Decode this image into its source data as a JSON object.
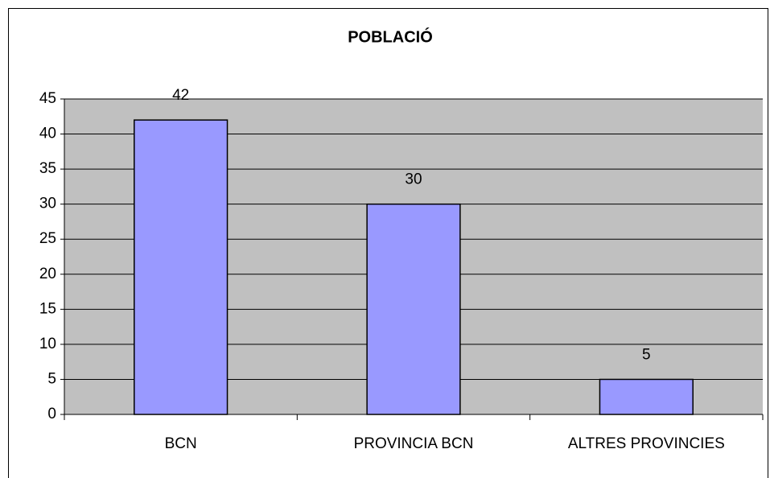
{
  "chart_data": {
    "type": "bar",
    "title": "POBLACIÓ",
    "categories": [
      "BCN",
      "PROVINCIA BCN",
      "ALTRES PROVINCIES"
    ],
    "values": [
      42,
      30,
      5
    ],
    "color": "#9999ff",
    "ylim": [
      0,
      45
    ],
    "yticks": [
      0,
      5,
      10,
      15,
      20,
      25,
      30,
      35,
      40,
      45
    ],
    "grid": true
  }
}
